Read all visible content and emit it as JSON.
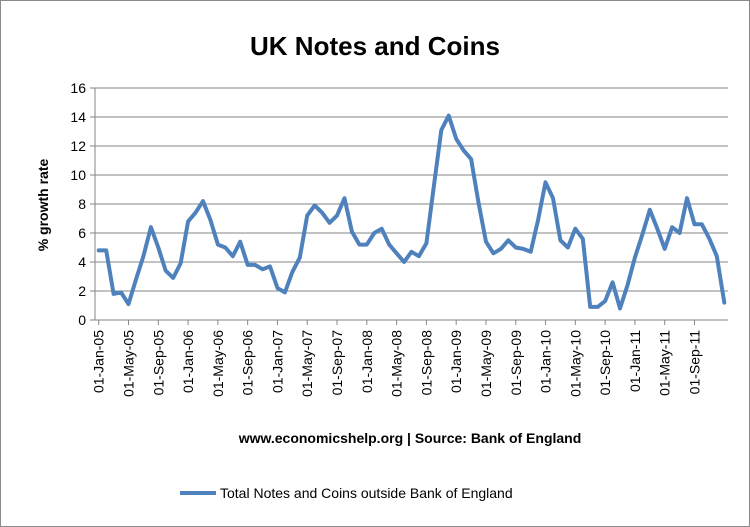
{
  "chart_data": {
    "type": "line",
    "title": "UK Notes and Coins",
    "xlabel": "www.economicshelp.org | Source: Bank of England",
    "ylabel": "% growth rate",
    "ylim": [
      0,
      16
    ],
    "y_ticks": [
      0,
      2,
      4,
      6,
      8,
      10,
      12,
      14,
      16
    ],
    "x_tick_labels": [
      "01-Jan-05",
      "01-May-05",
      "01-Sep-05",
      "01-Jan-06",
      "01-May-06",
      "01-Sep-06",
      "01-Jan-07",
      "01-May-07",
      "01-Sep-07",
      "01-Jan-08",
      "01-May-08",
      "01-Sep-08",
      "01-Jan-09",
      "01-May-09",
      "01-Sep-09",
      "01-Jan-10",
      "01-May-10",
      "01-Sep-10",
      "01-Jan-11",
      "01-May-11",
      "01-Sep-11"
    ],
    "x_tick_step_months": 4,
    "x_start": "2005-01",
    "grid": true,
    "legend_position": "bottom",
    "series": [
      {
        "name": "Total Notes and Coins outside Bank of England",
        "color": "#4f81bd",
        "values": [
          4.8,
          4.8,
          1.8,
          1.9,
          1.1,
          2.8,
          4.4,
          6.4,
          5.0,
          3.4,
          2.9,
          3.9,
          6.8,
          7.4,
          8.2,
          6.9,
          5.2,
          5.0,
          4.4,
          5.4,
          3.8,
          3.8,
          3.5,
          3.7,
          2.2,
          1.9,
          3.3,
          4.3,
          7.2,
          7.9,
          7.4,
          6.7,
          7.2,
          8.4,
          6.1,
          5.2,
          5.2,
          6.0,
          6.3,
          5.2,
          4.6,
          4.0,
          4.7,
          4.4,
          5.3,
          9.2,
          13.1,
          14.1,
          12.5,
          11.7,
          11.1,
          8.1,
          5.4,
          4.6,
          4.9,
          5.5,
          5.0,
          4.9,
          4.7,
          6.9,
          9.5,
          8.4,
          5.5,
          5.0,
          6.3,
          5.6,
          0.9,
          0.9,
          1.3,
          2.6,
          0.8,
          2.4,
          4.3,
          5.9,
          7.6,
          6.3,
          4.9,
          6.4,
          6.0,
          8.4,
          6.6,
          6.6,
          5.6,
          4.4,
          1.2
        ]
      }
    ]
  }
}
